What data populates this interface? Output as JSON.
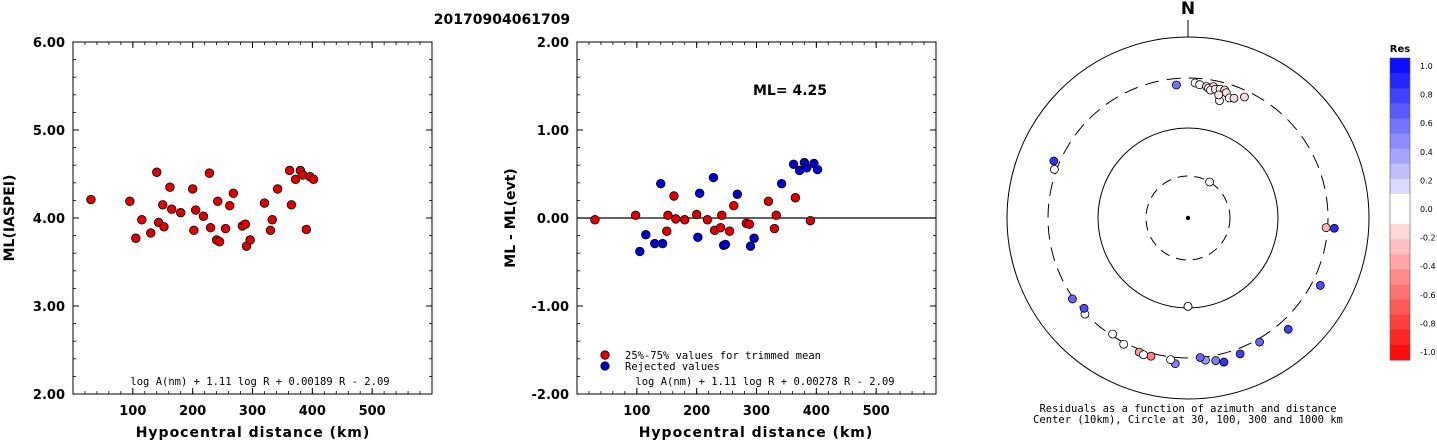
{
  "title": "20170904061709",
  "chart_data": [
    {
      "type": "scatter",
      "xlabel": "Hypocentral distance (km)",
      "ylabel": "ML(IASPEI)",
      "xlim": [
        0,
        600
      ],
      "ylim": [
        2.0,
        6.0
      ],
      "xticks": [
        "100",
        "200",
        "300",
        "400",
        "500"
      ],
      "yticks": [
        "2.00",
        "3.00",
        "4.00",
        "5.00",
        "6.00"
      ],
      "formula": "log A(nm) + 1.11 log R + 0.00189 R - 2.09",
      "series": [
        {
          "color": "#e00000",
          "points": [
            [
              30,
              4.21
            ],
            [
              95,
              4.19
            ],
            [
              105,
              3.77
            ],
            [
              115,
              3.98
            ],
            [
              130,
              3.83
            ],
            [
              140,
              4.52
            ],
            [
              143,
              3.95
            ],
            [
              150,
              4.15
            ],
            [
              152,
              3.9
            ],
            [
              162,
              4.35
            ],
            [
              165,
              4.1
            ],
            [
              180,
              4.06
            ],
            [
              200,
              4.33
            ],
            [
              202,
              3.86
            ],
            [
              205,
              4.09
            ],
            [
              218,
              4.02
            ],
            [
              228,
              4.51
            ],
            [
              230,
              3.89
            ],
            [
              240,
              3.75
            ],
            [
              242,
              4.19
            ],
            [
              245,
              3.73
            ],
            [
              255,
              3.88
            ],
            [
              262,
              4.14
            ],
            [
              268,
              4.28
            ],
            [
              283,
              3.91
            ],
            [
              288,
              3.93
            ],
            [
              290,
              3.68
            ],
            [
              296,
              3.75
            ],
            [
              320,
              4.17
            ],
            [
              330,
              3.86
            ],
            [
              333,
              3.98
            ],
            [
              342,
              4.33
            ],
            [
              362,
              4.54
            ],
            [
              365,
              4.15
            ],
            [
              372,
              4.44
            ],
            [
              380,
              4.54
            ],
            [
              384,
              4.49
            ],
            [
              390,
              3.87
            ],
            [
              396,
              4.47
            ],
            [
              402,
              4.44
            ]
          ]
        }
      ]
    },
    {
      "type": "scatter",
      "xlabel": "Hypocentral distance (km)",
      "ylabel": "ML - ML(evt)",
      "xlim": [
        0,
        600
      ],
      "ylim": [
        -2.0,
        2.0
      ],
      "xticks": [
        "100",
        "200",
        "300",
        "400",
        "500"
      ],
      "yticks": [
        "-2.00",
        "-1.00",
        "0.00",
        "1.00",
        "2.00"
      ],
      "annotation": "ML=  4.25",
      "formula": "log A(nm) + 1.11 log R + 0.00278 R - 2.09",
      "legend": [
        "25%-75% values for trimmed mean",
        "Rejected values"
      ],
      "series": [
        {
          "name": "25%-75% values for trimmed mean",
          "color": "#e00000",
          "points": [
            [
              30,
              -0.02
            ],
            [
              98,
              0.03
            ],
            [
              150,
              -0.15
            ],
            [
              152,
              0.03
            ],
            [
              162,
              0.25
            ],
            [
              165,
              -0.01
            ],
            [
              180,
              -0.02
            ],
            [
              200,
              0.04
            ],
            [
              218,
              -0.02
            ],
            [
              230,
              -0.14
            ],
            [
              240,
              -0.11
            ],
            [
              242,
              0.03
            ],
            [
              255,
              -0.15
            ],
            [
              262,
              0.14
            ],
            [
              283,
              -0.06
            ],
            [
              288,
              -0.07
            ],
            [
              320,
              0.19
            ],
            [
              330,
              -0.12
            ],
            [
              333,
              0.03
            ],
            [
              365,
              0.23
            ],
            [
              390,
              -0.03
            ]
          ]
        },
        {
          "name": "Rejected values",
          "color": "#0000cc",
          "points": [
            [
              105,
              -0.38
            ],
            [
              115,
              -0.19
            ],
            [
              130,
              -0.29
            ],
            [
              140,
              0.39
            ],
            [
              143,
              -0.29
            ],
            [
              202,
              -0.22
            ],
            [
              205,
              0.28
            ],
            [
              228,
              0.46
            ],
            [
              245,
              -0.31
            ],
            [
              248,
              -0.3
            ],
            [
              268,
              0.27
            ],
            [
              290,
              -0.32
            ],
            [
              296,
              -0.23
            ],
            [
              342,
              0.39
            ],
            [
              362,
              0.61
            ],
            [
              372,
              0.54
            ],
            [
              380,
              0.63
            ],
            [
              384,
              0.57
            ],
            [
              396,
              0.62
            ],
            [
              402,
              0.55
            ]
          ]
        }
      ]
    },
    {
      "type": "scatter",
      "subtype": "polar",
      "north_label": "N",
      "caption": [
        "Residuals as a function of azimuth and distance",
        "Center (10km), Circle at 30, 100, 300 and 1000 km"
      ],
      "colorbar": {
        "title": "Res",
        "ticks": [
          "1.0",
          "0.8",
          "0.6",
          "0.4",
          "0.2",
          "0.0",
          "-0.2",
          "-0.4",
          "-0.6",
          "-0.8",
          "-1.0"
        ]
      },
      "points": [
        {
          "az": 31,
          "dist": 30,
          "res": 0.0
        },
        {
          "az": 355,
          "dist": 260,
          "res": 0.55
        },
        {
          "az": 3,
          "dist": 270,
          "res": 0.05
        },
        {
          "az": 5,
          "dist": 262,
          "res": 0.0
        },
        {
          "az": 8,
          "dist": 256,
          "res": -0.2
        },
        {
          "az": 9,
          "dist": 248,
          "res": -0.05
        },
        {
          "az": 11,
          "dist": 262,
          "res": -0.15
        },
        {
          "az": 10,
          "dist": 240,
          "res": 0.0
        },
        {
          "az": 12,
          "dist": 250,
          "res": -0.1
        },
        {
          "az": 14,
          "dist": 256,
          "res": 0.0
        },
        {
          "az": 16,
          "dist": 258,
          "res": -0.2
        },
        {
          "az": 17,
          "dist": 246,
          "res": -0.1
        },
        {
          "az": 15,
          "dist": 200,
          "res": 0.0
        },
        {
          "az": 14,
          "dist": 225,
          "res": -0.1
        },
        {
          "az": 19,
          "dist": 225,
          "res": 0.0
        },
        {
          "az": 21,
          "dist": 232,
          "res": -0.15
        },
        {
          "az": 25,
          "dist": 260,
          "res": -0.15
        },
        {
          "az": 94,
          "dist": 290,
          "res": -0.3
        },
        {
          "az": 94,
          "dist": 365,
          "res": 0.85
        },
        {
          "az": 117,
          "dist": 385,
          "res": 0.7
        },
        {
          "az": 138,
          "dist": 400,
          "res": 0.75
        },
        {
          "az": 150,
          "dist": 330,
          "res": 0.6
        },
        {
          "az": 159,
          "dist": 353,
          "res": 0.75
        },
        {
          "az": 166,
          "dist": 385,
          "res": 0.8
        },
        {
          "az": 169,
          "dist": 350,
          "res": 0.5
        },
        {
          "az": 173,
          "dist": 330,
          "res": 0.4
        },
        {
          "az": 175,
          "dist": 300,
          "res": 0.6
        },
        {
          "az": 180,
          "dist": 96,
          "res": -0.8
        },
        {
          "az": 180,
          "dist": 96,
          "res": 0.0
        },
        {
          "az": 185,
          "dist": 360,
          "res": 0.5
        },
        {
          "az": 187,
          "dist": 325,
          "res": 0.0
        },
        {
          "az": 195,
          "dist": 328,
          "res": -0.5
        },
        {
          "az": 200,
          "dist": 325,
          "res": -0.4
        },
        {
          "az": 198,
          "dist": 335,
          "res": 0.0
        },
        {
          "az": 207,
          "dist": 315,
          "res": 0.0
        },
        {
          "az": 213,
          "dist": 290,
          "res": 0.0
        },
        {
          "az": 227,
          "dist": 308,
          "res": 0.0
        },
        {
          "az": 235,
          "dist": 310,
          "res": 0.6
        },
        {
          "az": 229,
          "dist": 285,
          "res": 0.7
        },
        {
          "az": 290,
          "dist": 320,
          "res": 0.0
        },
        {
          "az": 293,
          "dist": 355,
          "res": 0.8
        }
      ]
    }
  ]
}
